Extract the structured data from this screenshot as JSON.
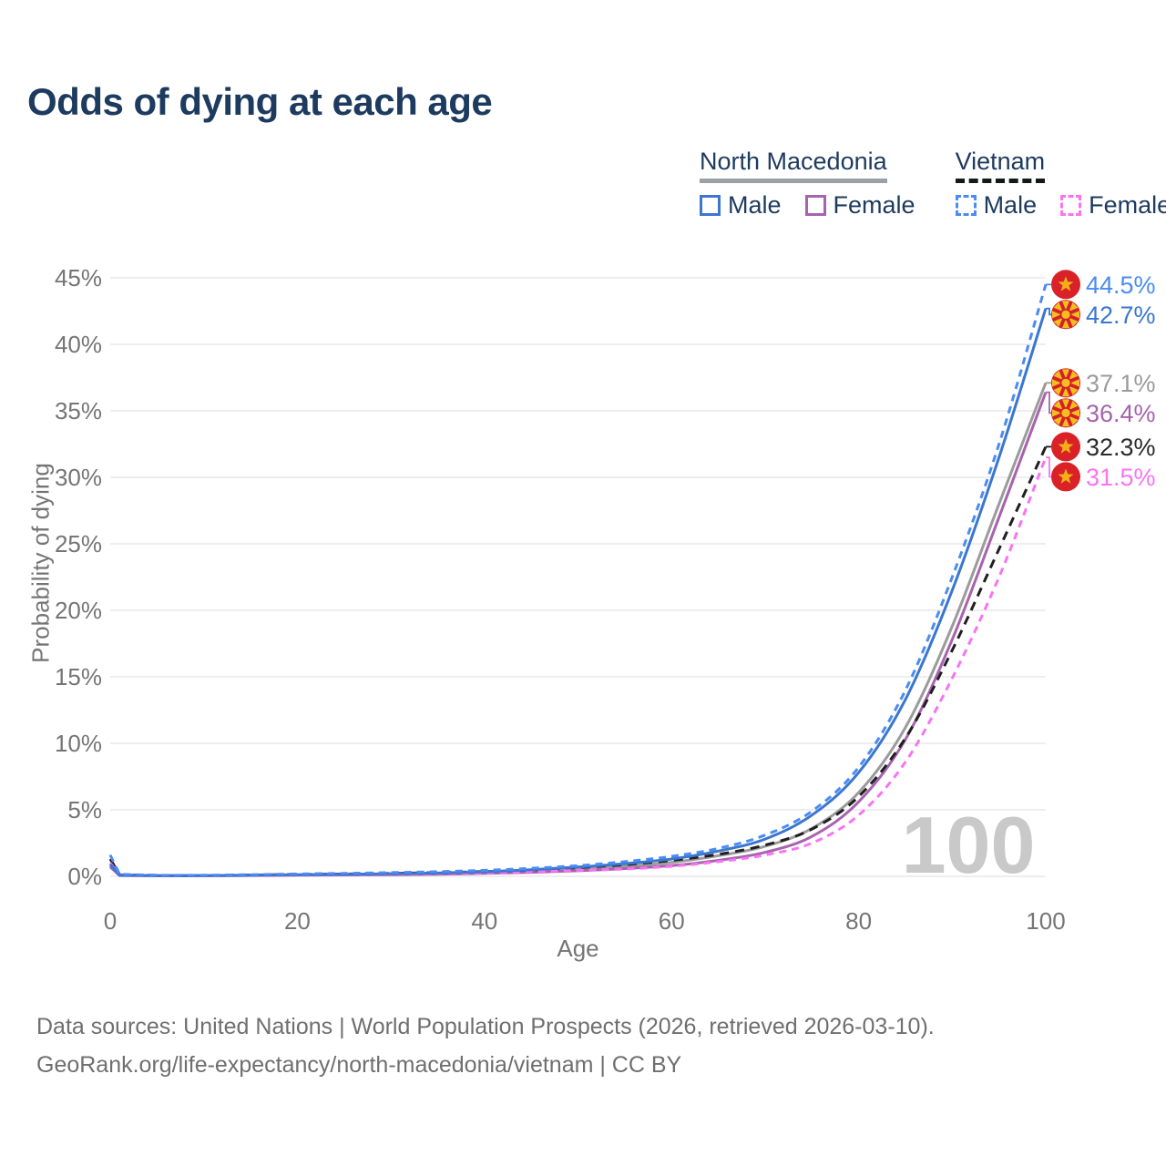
{
  "title": "Odds of dying at each age",
  "legend": {
    "groups": [
      {
        "country": "North Macedonia",
        "line_style": "solid",
        "underline_color": "#9aa0a6",
        "items": [
          {
            "label": "Male",
            "color": "#3b76cf",
            "dashed": false
          },
          {
            "label": "Female",
            "color": "#a763ad",
            "dashed": false
          }
        ]
      },
      {
        "country": "Vietnam",
        "line_style": "dashed",
        "underline_color": "#17181a",
        "items": [
          {
            "label": "Male",
            "color": "#4a8bf5",
            "dashed": true
          },
          {
            "label": "Female",
            "color": "#f973f4",
            "dashed": true
          }
        ]
      }
    ]
  },
  "chart_data": {
    "type": "line",
    "title": "Odds of dying at each age",
    "xlabel": "Age",
    "ylabel": "Probability of dying",
    "xlim": [
      0,
      100
    ],
    "ylim": [
      0,
      45
    ],
    "xticks": [
      0,
      20,
      40,
      60,
      80,
      100
    ],
    "yticks": [
      0,
      5,
      10,
      15,
      20,
      25,
      30,
      35,
      40,
      45
    ],
    "ytick_suffix": "%",
    "grid": "horizontal",
    "legend_position": "top-right",
    "watermark": "100",
    "x": [
      0,
      1,
      5,
      10,
      15,
      20,
      25,
      30,
      35,
      40,
      45,
      50,
      55,
      60,
      65,
      70,
      75,
      80,
      85,
      90,
      95,
      100
    ],
    "series": [
      {
        "name": "Vietnam Male",
        "country": "Vietnam",
        "sex": "Male",
        "color": "#4a8bf5",
        "dash": true,
        "values": [
          1.6,
          0.15,
          0.08,
          0.08,
          0.12,
          0.18,
          0.22,
          0.28,
          0.35,
          0.45,
          0.6,
          0.8,
          1.1,
          1.5,
          2.1,
          3.1,
          4.9,
          8.2,
          14.0,
          22.5,
          32.5,
          44.5
        ],
        "end_label": "44.5%",
        "label_color": "#4a8bf5",
        "flag": "vietnam"
      },
      {
        "name": "North Macedonia Male",
        "country": "North Macedonia",
        "sex": "Male",
        "color": "#3b76cf",
        "dash": false,
        "values": [
          0.9,
          0.08,
          0.05,
          0.05,
          0.08,
          0.12,
          0.15,
          0.2,
          0.25,
          0.35,
          0.5,
          0.7,
          0.95,
          1.3,
          1.9,
          2.8,
          4.6,
          7.8,
          13.3,
          21.5,
          31.5,
          42.7
        ],
        "end_label": "42.7%",
        "label_color": "#3b76cf",
        "flag": "north-macedonia"
      },
      {
        "name": "North Macedonia (both sexes)",
        "country": "North Macedonia",
        "sex": "Both",
        "color": "#9b9b9b",
        "dash": false,
        "values": [
          0.8,
          0.07,
          0.04,
          0.04,
          0.07,
          0.1,
          0.12,
          0.16,
          0.2,
          0.28,
          0.4,
          0.55,
          0.75,
          1.05,
          1.55,
          2.25,
          3.6,
          6.3,
          11.2,
          18.8,
          28.0,
          37.1
        ],
        "end_label": "37.1%",
        "label_color": "#9b9b9b",
        "flag": "north-macedonia"
      },
      {
        "name": "North Macedonia Female",
        "country": "North Macedonia",
        "sex": "Female",
        "color": "#a763ad",
        "dash": false,
        "values": [
          0.7,
          0.06,
          0.04,
          0.04,
          0.06,
          0.08,
          0.1,
          0.12,
          0.16,
          0.22,
          0.3,
          0.42,
          0.58,
          0.8,
          1.2,
          1.8,
          3.0,
          5.6,
          10.3,
          17.8,
          27.0,
          36.4
        ],
        "end_label": "36.4%",
        "label_color": "#a763ad",
        "flag": "north-macedonia"
      },
      {
        "name": "Vietnam (both sexes)",
        "country": "Vietnam",
        "sex": "Both",
        "color": "#1f1f1f",
        "dash": true,
        "values": [
          1.3,
          0.12,
          0.07,
          0.07,
          0.1,
          0.14,
          0.17,
          0.22,
          0.28,
          0.36,
          0.48,
          0.65,
          0.88,
          1.2,
          1.65,
          2.35,
          3.55,
          6.0,
          10.4,
          17.0,
          24.6,
          32.3
        ],
        "end_label": "32.3%",
        "label_color": "#2b2b2b",
        "flag": "vietnam"
      },
      {
        "name": "Vietnam Female",
        "country": "Vietnam",
        "sex": "Female",
        "color": "#f973f4",
        "dash": true,
        "values": [
          1.0,
          0.1,
          0.06,
          0.06,
          0.08,
          0.11,
          0.14,
          0.17,
          0.21,
          0.26,
          0.34,
          0.45,
          0.55,
          0.75,
          1.1,
          1.6,
          2.5,
          4.6,
          8.6,
          14.9,
          22.5,
          31.5
        ],
        "end_label": "31.5%",
        "label_color": "#f973f4",
        "flag": "vietnam"
      }
    ],
    "flag_colors": {
      "vietnam": {
        "field": "#da2127",
        "emblem": "#f0b019"
      },
      "north-macedonia": {
        "field": "#d3202a",
        "emblem": "#f5bd1f"
      }
    }
  },
  "footer": {
    "line1": "Data sources: United Nations | World Population Prospects (2026, retrieved 2026-03-10).",
    "line2": "GeoRank.org/life-expectancy/north-macedonia/vietnam | CC BY"
  },
  "colors": {
    "title_text": "#1d3a5f",
    "axis_text": "#757575",
    "gridline": "#e9e9e9",
    "watermark": "#c9c9c9",
    "footer_text": "#6f6f6f"
  }
}
